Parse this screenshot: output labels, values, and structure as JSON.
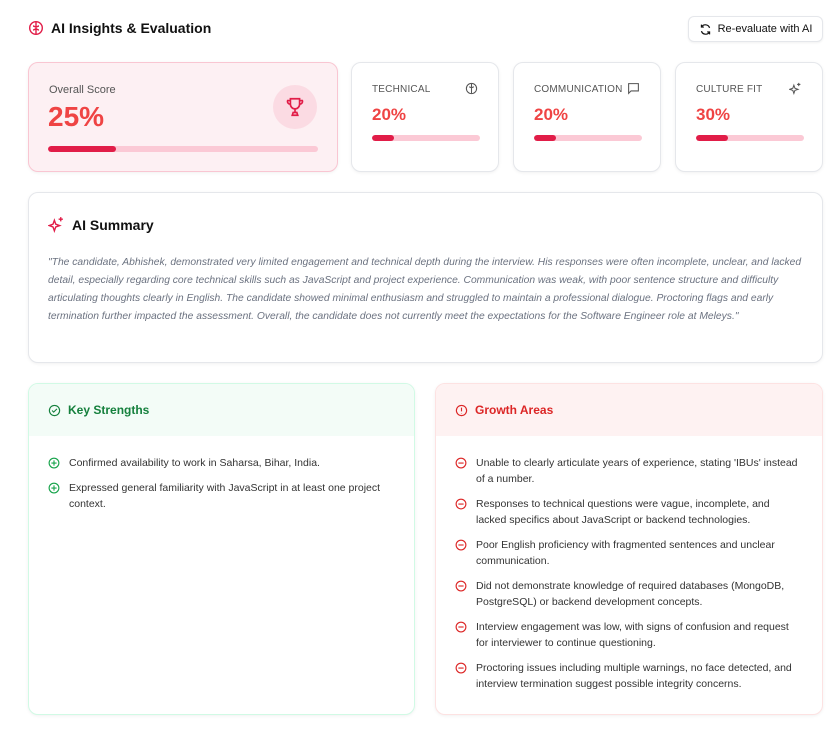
{
  "header": {
    "title": "AI Insights & Evaluation",
    "reevaluate_label": "Re-evaluate with AI",
    "icon": "brain-icon"
  },
  "colors": {
    "accent": "#e11d48",
    "score_text": "#ef4444",
    "strength": "#15803d",
    "growth": "#dc2626"
  },
  "overall": {
    "label": "Overall Score",
    "value": "25%",
    "percent": 25,
    "icon": "trophy-icon"
  },
  "metrics": [
    {
      "label": "TECHNICAL",
      "value": "20%",
      "percent": 20,
      "icon": "brain-icon"
    },
    {
      "label": "COMMUNICATION",
      "value": "20%",
      "percent": 20,
      "icon": "message-square-icon"
    },
    {
      "label": "CULTURE FIT",
      "value": "30%",
      "percent": 30,
      "icon": "sparkles-icon"
    }
  ],
  "summary": {
    "title": "AI Summary",
    "text": "\"The candidate, Abhishek, demonstrated very limited engagement and technical depth during the interview. His responses were often incomplete, unclear, and lacked detail, especially regarding core technical skills such as JavaScript and project experience. Communication was weak, with poor sentence structure and difficulty articulating thoughts clearly in English. The candidate showed minimal enthusiasm and struggled to maintain a professional dialogue. Proctoring flags and early termination further impacted the assessment. Overall, the candidate does not currently meet the expectations for the Software Engineer role at Meleys.\""
  },
  "strengths": {
    "title": "Key Strengths",
    "items": [
      "Confirmed availability to work in Saharsa, Bihar, India.",
      "Expressed general familiarity with JavaScript in at least one project context."
    ]
  },
  "growth": {
    "title": "Growth Areas",
    "items": [
      "Unable to clearly articulate years of experience, stating 'IBUs' instead of a number.",
      "Responses to technical questions were vague, incomplete, and lacked specifics about JavaScript or backend technologies.",
      "Poor English proficiency with fragmented sentences and unclear communication.",
      "Did not demonstrate knowledge of required databases (MongoDB, PostgreSQL) or backend development concepts.",
      "Interview engagement was low, with signs of confusion and request for interviewer to continue questioning.",
      "Proctoring issues including multiple warnings, no face detected, and interview termination suggest possible integrity concerns."
    ]
  }
}
